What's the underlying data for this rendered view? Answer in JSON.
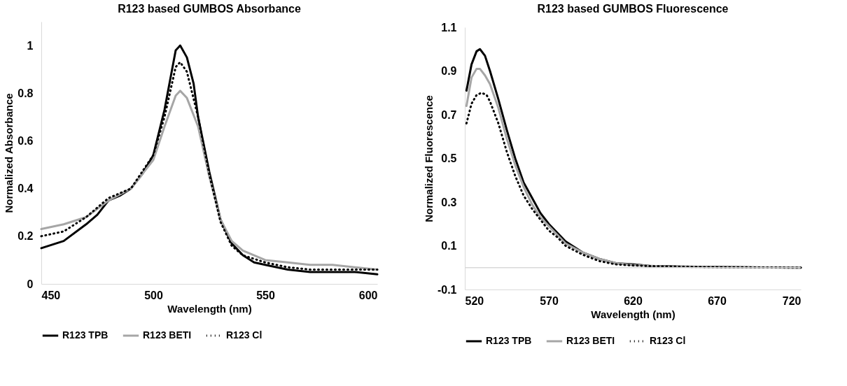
{
  "chart_data": [
    {
      "type": "line",
      "title": "R123 based GUMBOS Absorbance",
      "xlabel": "Wavelength (nm)",
      "ylabel": "Normalized Absorbance",
      "xlim": [
        450,
        600
      ],
      "xticks": [
        450,
        500,
        550,
        600
      ],
      "ylim": [
        0,
        1.1
      ],
      "yticks": [
        0,
        0.2,
        0.4,
        0.6,
        0.8,
        1
      ],
      "legend": "bottom",
      "series": [
        {
          "name": "R123 TPB",
          "color": "#000000",
          "line_style": "solid",
          "x": [
            450,
            460,
            470,
            475,
            480,
            485,
            490,
            495,
            500,
            505,
            508,
            510,
            512,
            515,
            518,
            520,
            525,
            530,
            535,
            540,
            545,
            550,
            560,
            570,
            580,
            590,
            600
          ],
          "values": [
            0.15,
            0.18,
            0.25,
            0.29,
            0.35,
            0.37,
            0.4,
            0.46,
            0.54,
            0.73,
            0.88,
            0.98,
            1.0,
            0.95,
            0.84,
            0.7,
            0.47,
            0.27,
            0.17,
            0.12,
            0.09,
            0.08,
            0.06,
            0.05,
            0.05,
            0.05,
            0.04
          ]
        },
        {
          "name": "R123 BETI",
          "color": "#a6a6a6",
          "line_style": "solid",
          "x": [
            450,
            460,
            470,
            480,
            490,
            500,
            505,
            510,
            512,
            515,
            520,
            525,
            530,
            535,
            540,
            545,
            550,
            560,
            570,
            580,
            590,
            600
          ],
          "values": [
            0.23,
            0.25,
            0.28,
            0.35,
            0.4,
            0.52,
            0.66,
            0.79,
            0.81,
            0.78,
            0.66,
            0.45,
            0.27,
            0.18,
            0.14,
            0.12,
            0.1,
            0.09,
            0.08,
            0.08,
            0.07,
            0.06
          ]
        },
        {
          "name": "R123 Cl",
          "color": "#000000",
          "line_style": "dotted",
          "x": [
            450,
            460,
            470,
            480,
            490,
            500,
            505,
            510,
            512,
            515,
            520,
            525,
            530,
            535,
            540,
            550,
            560,
            570,
            580,
            590,
            600
          ],
          "values": [
            0.2,
            0.22,
            0.28,
            0.36,
            0.4,
            0.54,
            0.7,
            0.91,
            0.93,
            0.89,
            0.7,
            0.46,
            0.26,
            0.16,
            0.12,
            0.09,
            0.07,
            0.06,
            0.06,
            0.06,
            0.06
          ]
        }
      ]
    },
    {
      "type": "line",
      "title": "R123 based GUMBOS Fluorescence",
      "xlabel": "Wavelength (nm)",
      "ylabel": "Normalized Fluorescence",
      "xlim": [
        520,
        720
      ],
      "xticks": [
        520,
        570,
        620,
        670,
        720
      ],
      "ylim": [
        -0.1,
        1.1
      ],
      "yticks": [
        -0.1,
        0.1,
        0.3,
        0.5,
        0.7,
        0.9,
        1.1
      ],
      "legend": "bottom",
      "ref_lines": [
        {
          "axis": "y",
          "value": 0,
          "color": "#d9d9d9"
        }
      ],
      "series": [
        {
          "name": "R123 TPB",
          "color": "#000000",
          "line_style": "solid",
          "x": [
            521,
            524,
            527,
            529,
            532,
            535,
            540,
            545,
            550,
            555,
            560,
            565,
            570,
            575,
            580,
            590,
            600,
            610,
            620,
            630,
            650,
            670,
            700,
            720
          ],
          "values": [
            0.81,
            0.93,
            0.99,
            1.0,
            0.97,
            0.9,
            0.77,
            0.63,
            0.5,
            0.39,
            0.32,
            0.25,
            0.2,
            0.16,
            0.12,
            0.07,
            0.04,
            0.02,
            0.015,
            0.008,
            0.005,
            0.003,
            0.001,
            0
          ]
        },
        {
          "name": "R123 BETI",
          "color": "#a6a6a6",
          "line_style": "solid",
          "x": [
            521,
            524,
            527,
            529,
            532,
            535,
            540,
            545,
            550,
            555,
            560,
            565,
            570,
            575,
            580,
            590,
            600,
            610,
            620,
            640,
            670,
            720
          ],
          "values": [
            0.74,
            0.87,
            0.91,
            0.91,
            0.88,
            0.84,
            0.73,
            0.59,
            0.47,
            0.37,
            0.29,
            0.23,
            0.19,
            0.15,
            0.11,
            0.07,
            0.04,
            0.02,
            0.012,
            0.005,
            0.002,
            0
          ]
        },
        {
          "name": "R123 Cl",
          "color": "#000000",
          "line_style": "dotted",
          "x": [
            521,
            524,
            527,
            530,
            533,
            535,
            540,
            545,
            550,
            555,
            560,
            565,
            570,
            575,
            580,
            590,
            600,
            610,
            620,
            640,
            670,
            720
          ],
          "values": [
            0.66,
            0.75,
            0.79,
            0.8,
            0.79,
            0.76,
            0.66,
            0.53,
            0.42,
            0.33,
            0.27,
            0.22,
            0.17,
            0.14,
            0.1,
            0.06,
            0.03,
            0.015,
            0.01,
            0.005,
            0.002,
            0
          ]
        }
      ]
    }
  ]
}
